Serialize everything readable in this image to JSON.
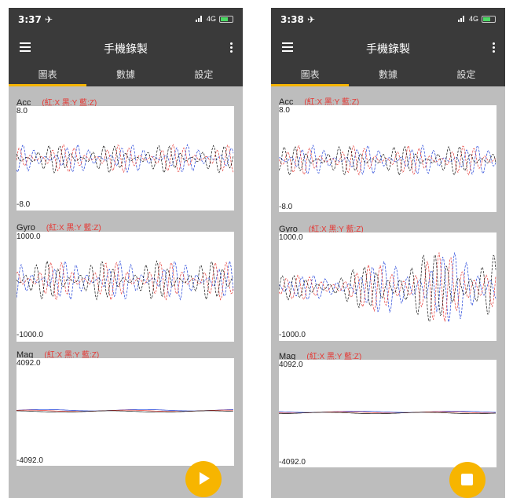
{
  "screens": [
    {
      "status": {
        "time": "3:37 ✈",
        "network": "4G"
      },
      "app_title": "手機錄製",
      "tabs": [
        "圖表",
        "數據",
        "設定"
      ],
      "active_tab": 0,
      "fab_icon": "play-icon",
      "charts": [
        {
          "name": "Acc",
          "legend": "(紅:X  黑:Y  藍:Z)",
          "ymax": "8.0",
          "ymin": "-8.0"
        },
        {
          "name": "Gyro",
          "legend": "(紅:X  黑:Y  藍:Z)",
          "ymax": "1000.0",
          "ymin": "-1000.0"
        },
        {
          "name": "Mag",
          "legend": "(紅:X  黑:Y  藍:Z)",
          "ymax": "4092.0",
          "ymin": "-4092.0"
        }
      ]
    },
    {
      "status": {
        "time": "3:38 ✈",
        "network": "4G"
      },
      "app_title": "手機錄製",
      "tabs": [
        "圖表",
        "數據",
        "設定"
      ],
      "active_tab": 0,
      "fab_icon": "stop-icon",
      "charts": [
        {
          "name": "Acc",
          "legend": "(紅:X  黑:Y  藍:Z)",
          "ymax": "8.0",
          "ymin": "-8.0"
        },
        {
          "name": "Gyro",
          "legend": "(紅:X  黑:Y  藍:Z)",
          "ymax": "1000.0",
          "ymin": "-1000.0"
        },
        {
          "name": "Mag",
          "legend": "(紅:X  黑:Y  藍:Z)",
          "ymax": "4092.0",
          "ymin": "-4092.0"
        }
      ]
    }
  ],
  "colors": {
    "x_series": "#e53935",
    "y_series": "#111111",
    "z_series": "#1e3fd8",
    "accent": "#f5b400",
    "bar": "#3a3a3a"
  }
}
